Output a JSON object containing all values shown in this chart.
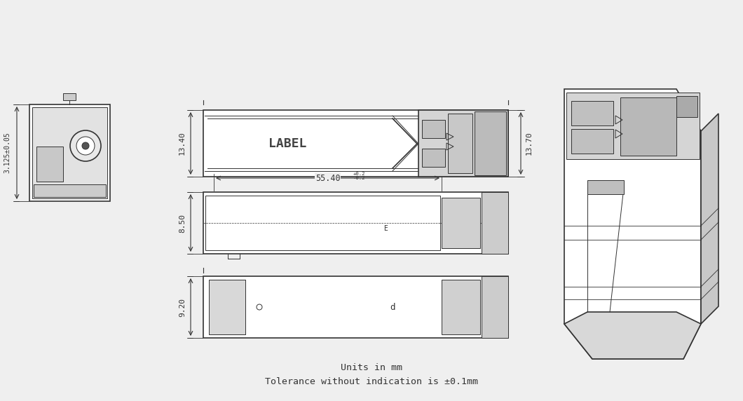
{
  "bg_color": "#efefef",
  "line_color": "#333333",
  "title_lines": [
    "Units in mm",
    "Tolerance without indication is ±0.1mm"
  ],
  "dim_13_40": "13.40",
  "dim_13_70": "13.70",
  "dim_8_50": "8.50",
  "dim_55_40": "55.40",
  "dim_9_20": "9.20",
  "dim_3_125": "3.125±0.05",
  "label_text": "LABEL"
}
